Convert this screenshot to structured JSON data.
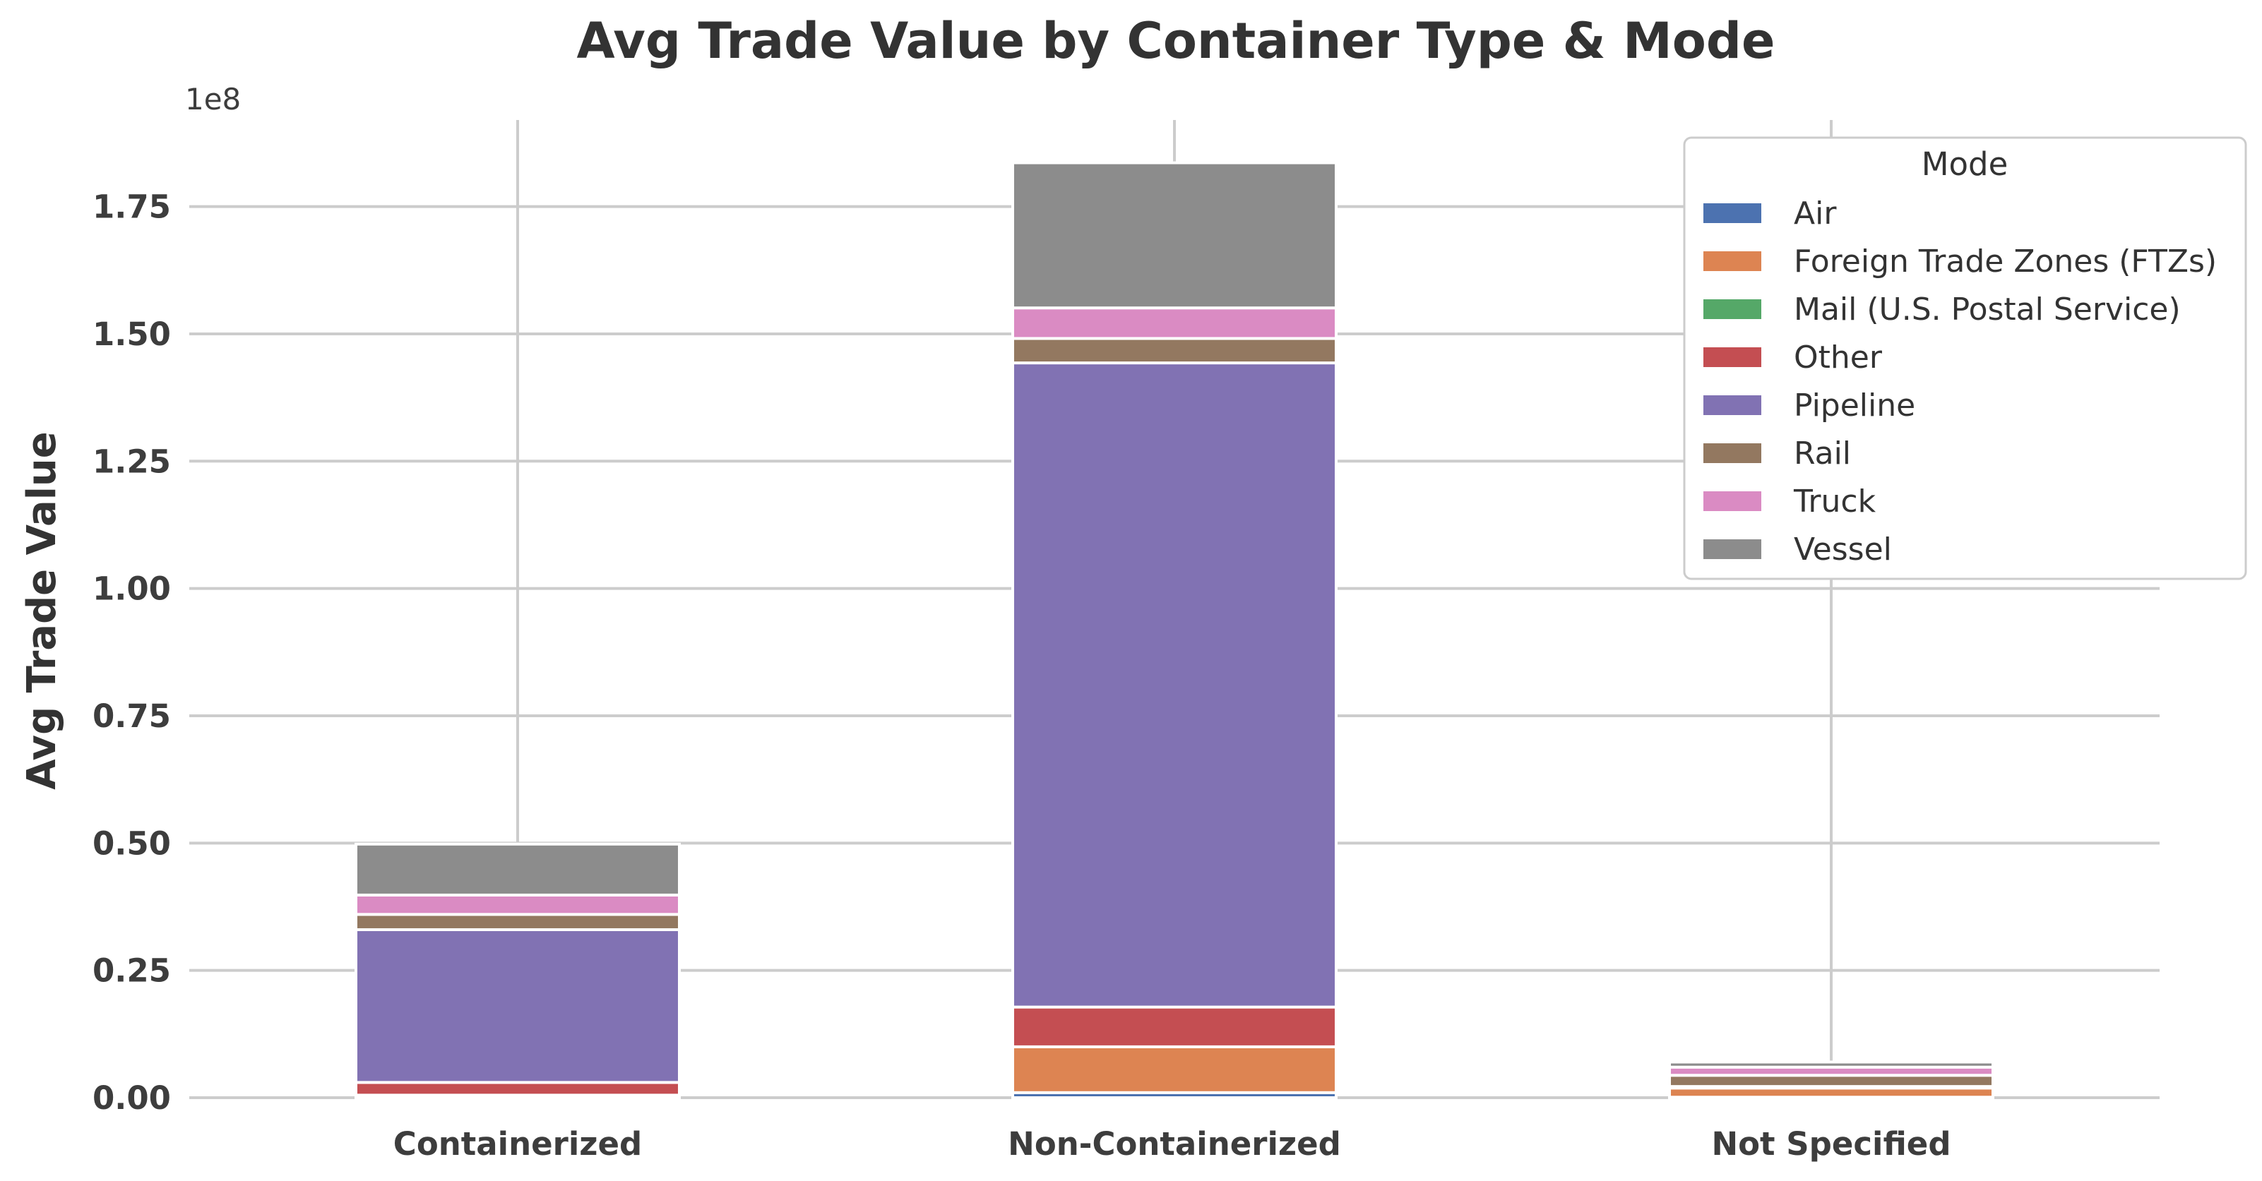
{
  "chart_data": {
    "type": "bar",
    "stacked": true,
    "title": "Avg Trade Value by Container Type & Mode",
    "xlabel": "",
    "ylabel": "Avg Trade Value",
    "y_offset_label": "1e8",
    "ylim": [
      0,
      1.92
    ],
    "yticks": [
      "0.00",
      "0.25",
      "0.50",
      "0.75",
      "1.00",
      "1.25",
      "1.50",
      "1.75"
    ],
    "grid": true,
    "legend_title": "Mode",
    "legend_position": "top-right",
    "categories": [
      "Containerized",
      "Non-Containerized",
      "Not Specified"
    ],
    "series": [
      {
        "name": "Air",
        "color": "#4c72b0",
        "values": [
          0.002,
          0.01,
          0.001
        ]
      },
      {
        "name": "Foreign Trade Zones (FTZs)",
        "color": "#dd8452",
        "values": [
          0.003,
          0.09,
          0.018
        ]
      },
      {
        "name": "Mail (U.S. Postal Service)",
        "color": "#55a868",
        "values": [
          0.0,
          0.0,
          0.0
        ]
      },
      {
        "name": "Other",
        "color": "#c44e52",
        "values": [
          0.025,
          0.078,
          0.003
        ]
      },
      {
        "name": "Pipeline",
        "color": "#8172b3",
        "values": [
          0.3,
          1.265,
          0.0
        ]
      },
      {
        "name": "Rail",
        "color": "#937860",
        "values": [
          0.03,
          0.048,
          0.022
        ]
      },
      {
        "name": "Truck",
        "color": "#da8bc3",
        "values": [
          0.038,
          0.06,
          0.016
        ]
      },
      {
        "name": "Vessel",
        "color": "#8c8c8c",
        "values": [
          0.1,
          0.285,
          0.01
        ]
      }
    ]
  }
}
